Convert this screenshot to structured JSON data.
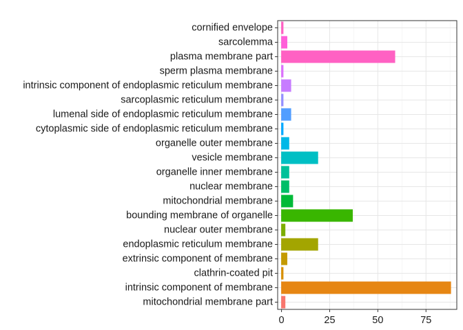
{
  "chart_data": {
    "type": "bar",
    "orientation": "horizontal",
    "title": "",
    "xlabel": "",
    "ylabel": "",
    "xlim": [
      -2,
      91
    ],
    "x_ticks": [
      0,
      25,
      50,
      75
    ],
    "grid": true,
    "legend": "none",
    "categories": [
      "cornified envelope",
      "sarcolemma",
      "plasma membrane part",
      "sperm plasma membrane",
      "intrinsic component of endoplasmic reticulum membrane",
      "sarcoplasmic reticulum membrane",
      "lumenal side of endoplasmic reticulum membrane",
      "cytoplasmic side of endoplasmic reticulum membrane",
      "organelle outer membrane",
      "vesicle membrane",
      "organelle inner membrane",
      "nuclear membrane",
      "mitochondrial membrane",
      "bounding membrane of organelle",
      "nuclear outer membrane",
      "endoplasmic reticulum membrane",
      "extrinsic component of membrane",
      "clathrin-coated pit",
      "intrinsic component of membrane",
      "mitochondrial membrane part"
    ],
    "values": [
      1,
      3,
      59,
      1,
      5,
      1,
      5,
      1,
      4,
      19,
      4,
      4,
      6,
      37,
      2,
      19,
      3,
      1,
      88,
      2
    ],
    "colors": [
      "#FF61C3",
      "#FF5FD9",
      "#FF61C3",
      "#DB72FB",
      "#C77CFF",
      "#9590FF",
      "#529EFF",
      "#00A9FF",
      "#00B8E7",
      "#00BFC4",
      "#00C19A",
      "#00BE67",
      "#00BA38",
      "#39B600",
      "#7CAE00",
      "#A3A500",
      "#C49A00",
      "#D89000",
      "#E68613",
      "#F8766D"
    ]
  }
}
